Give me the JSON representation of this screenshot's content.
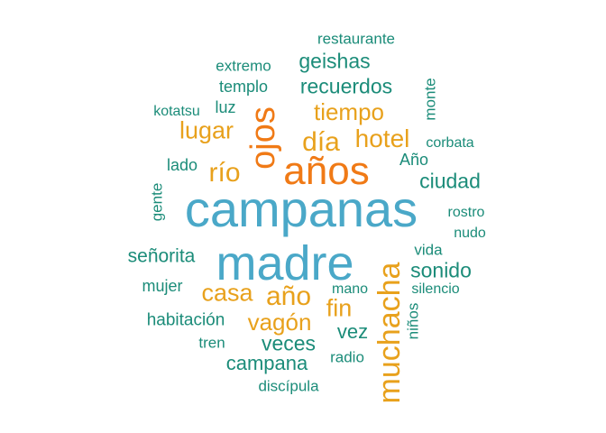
{
  "colors": {
    "blue": "#4aa8c8",
    "orange": "#f07a16",
    "amber": "#e8a11c",
    "green": "#1b8c79"
  },
  "words": {
    "campanas": "campanas",
    "madre": "madre",
    "anos": "años",
    "ojos": "ojos",
    "muchacha": "muchacha",
    "dia": "día",
    "rio": "río",
    "ano_lower": "año",
    "hotel": "hotel",
    "tiempo": "tiempo",
    "lugar": "lugar",
    "casa": "casa",
    "vagon": "vagón",
    "fin": "fin",
    "geishas": "geishas",
    "recuerdos": "recuerdos",
    "ciudad": "ciudad",
    "sonido": "sonido",
    "senorita": "señorita",
    "veces": "veces",
    "campana": "campana",
    "vez": "vez",
    "habitacion": "habitación",
    "restaurante": "restaurante",
    "extremo": "extremo",
    "templo": "templo",
    "luz": "luz",
    "kotatsu": "kotatsu",
    "monte": "monte",
    "corbata": "corbata",
    "ano_upper": "Año",
    "lado": "lado",
    "gente": "gente",
    "rostro": "rostro",
    "nudo": "nudo",
    "vida": "vida",
    "mujer": "mujer",
    "mano": "mano",
    "silencio": "silencio",
    "ninos": "niños",
    "tren": "tren",
    "radio": "radio",
    "discipula": "discípula"
  }
}
